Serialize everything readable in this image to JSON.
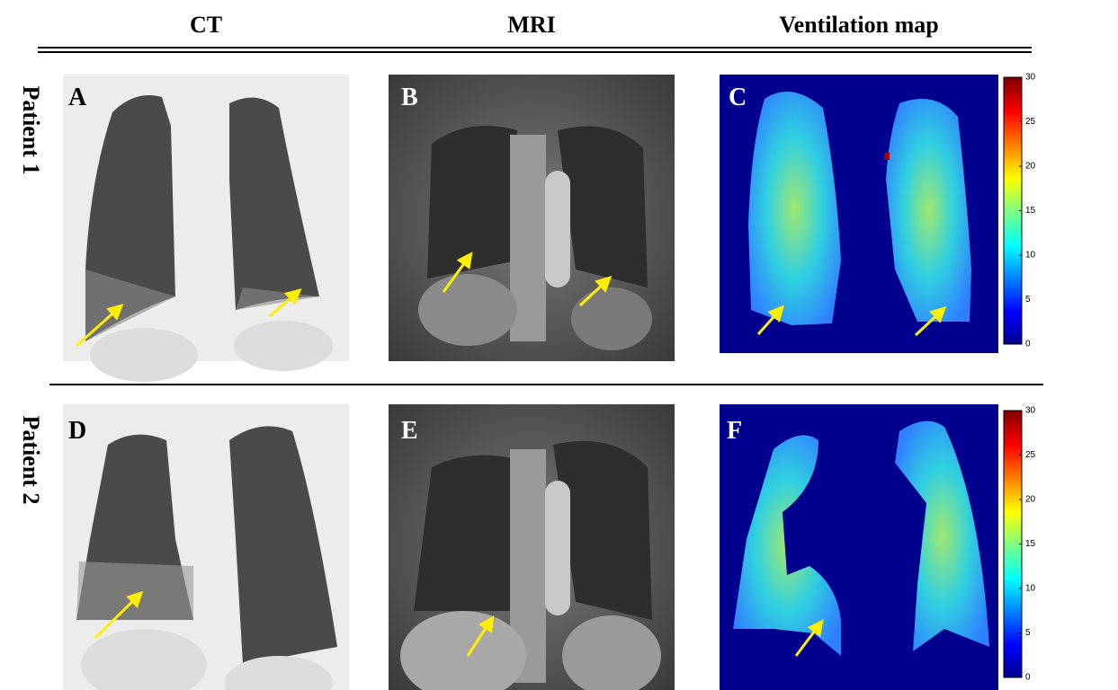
{
  "columns": [
    "CT",
    "MRI",
    "Ventilation map"
  ],
  "rows": [
    {
      "label": "Patient 1",
      "panels": [
        "A",
        "B",
        "C"
      ],
      "colorbar": {
        "lim": [
          0,
          30
        ],
        "ticks": [
          0,
          5,
          10,
          15,
          20,
          25,
          30
        ]
      }
    },
    {
      "label": "Patient 2",
      "panels": [
        "D",
        "E",
        "F"
      ],
      "colorbar": {
        "lim": [
          0,
          30
        ],
        "ticks": [
          0,
          5,
          10,
          15,
          20,
          25,
          30
        ]
      }
    }
  ]
}
